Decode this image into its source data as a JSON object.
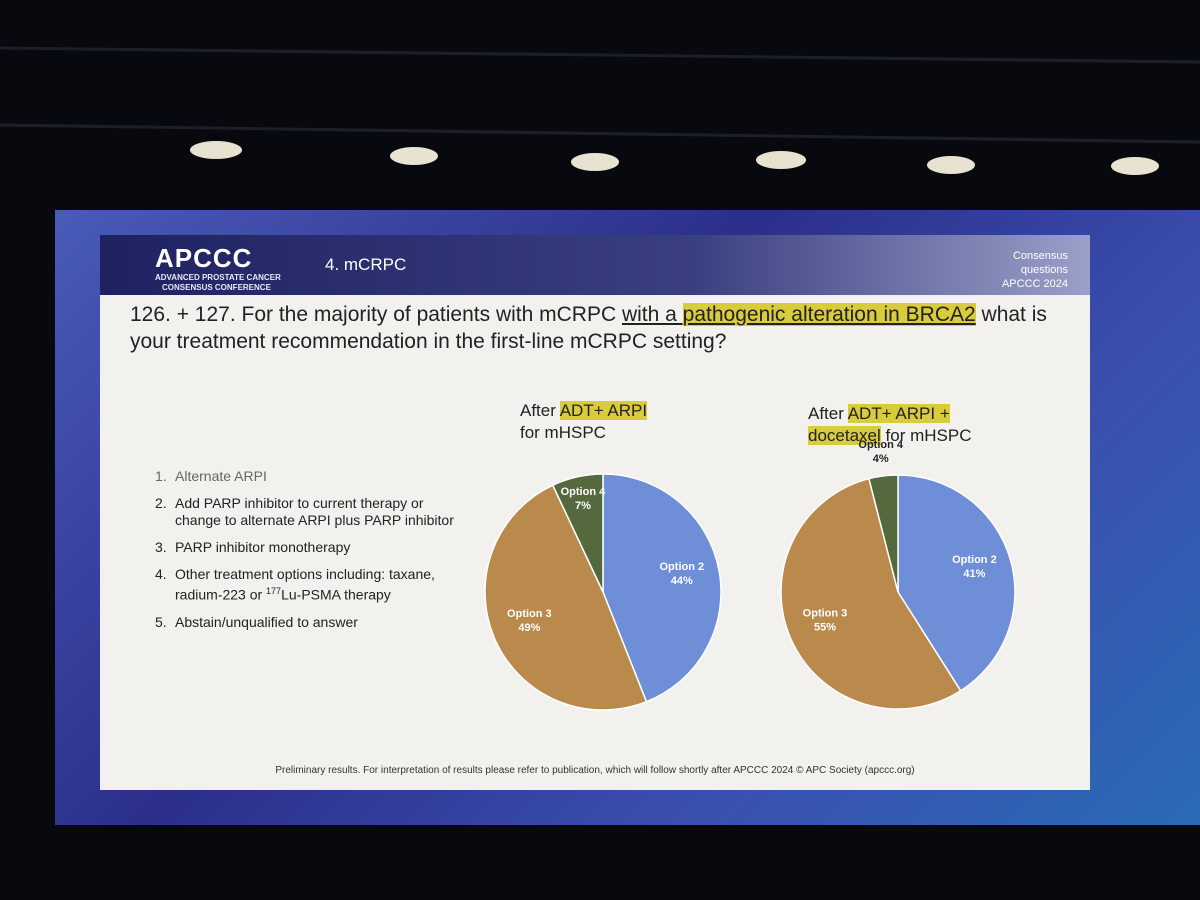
{
  "slide": {
    "logo": {
      "name": "APCCC",
      "line1": "ADVANCED PROSTATE CANCER",
      "line2": "CONSENSUS CONFERENCE"
    },
    "section": "4. mCRPC",
    "corner": [
      "Consensus",
      "questions",
      "APCCC 2024"
    ],
    "question": [
      "126. + 127. For the majority of patients with mCRPC ",
      "with a ",
      "pathogenic alteration in BRCA2",
      " what is your treatment recommendation in the first-line mCRPC setting?"
    ],
    "options": [
      {
        "number": "1.",
        "text": "Alternate ARPI"
      },
      {
        "number": "2.",
        "text": "Add PARP inhibitor to current therapy or change to alternate ARPI plus PARP inhibitor"
      },
      {
        "number": "3.",
        "text": "PARP inhibitor monotherapy"
      },
      {
        "number": "4.",
        "text": [
          "Other treatment options including: taxane, radium-223 or ",
          "177",
          "Lu-PSMA therapy"
        ]
      },
      {
        "number": "5.",
        "text": "Abstain/unqualified to answer"
      }
    ],
    "footer": "Preliminary results. For interpretation of results please refer to publication, which will follow shortly after APCCC 2024 © APC Society (apccc.org)"
  },
  "chart_data": [
    {
      "type": "pie",
      "title": [
        "After",
        "ADT+ ARPI",
        "for mHSPC"
      ],
      "categories": [
        "Option 2",
        "Option 3",
        "Option 4"
      ],
      "values": [
        44,
        49,
        7
      ],
      "value_labels": [
        "44%",
        "49%",
        "7%"
      ],
      "colors": [
        "#6e8ed8",
        "#b98a4c",
        "#55693f"
      ]
    },
    {
      "type": "pie",
      "title": [
        "After",
        "ADT+ ARPI +",
        "docetaxel",
        "for mHSPC"
      ],
      "categories": [
        "Option 2",
        "Option 3",
        "Option 4"
      ],
      "values": [
        41,
        55,
        4
      ],
      "value_labels": [
        "41%",
        "55%",
        "4%"
      ],
      "colors": [
        "#6e8ed8",
        "#b98a4c",
        "#55693f"
      ]
    }
  ]
}
